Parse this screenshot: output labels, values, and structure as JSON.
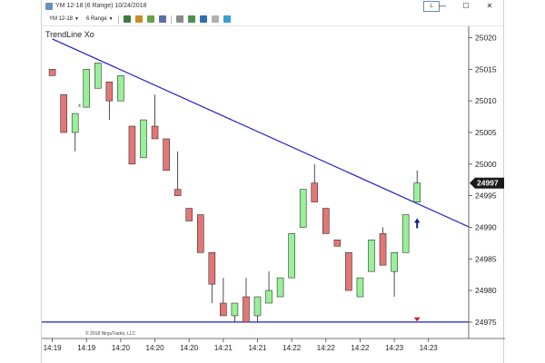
{
  "window": {
    "title": "YM 12-18 (6 Range)  10/24/2018",
    "badge": "L",
    "minimize": "—",
    "maximize": "☐",
    "close": "✕"
  },
  "toolbar": {
    "instrument": "YM 12-18",
    "interval": "6 Range"
  },
  "chart": {
    "title": "TrendLine Xo",
    "side_marker": "x",
    "copyright": "© 2018 NinjaTrader, LLC",
    "price_label": "24997",
    "colors": {
      "up_fill": "#98f098",
      "down_fill": "#e37676",
      "trendline": "#1c1ccd",
      "arrow_up": "#0c1f8a",
      "arrow_down": "#cc2020",
      "price_badge": "#1a1a1a"
    }
  },
  "chart_data": {
    "type": "candlestick",
    "y_ticks": [
      "25020",
      "25015",
      "25010",
      "25005",
      "25000",
      "24995",
      "24990",
      "24985",
      "24980",
      "24975"
    ],
    "x_ticks": [
      "14:19",
      "14:19",
      "14:20",
      "14:20",
      "14:20",
      "14:21",
      "14:21",
      "14:22",
      "14:22",
      "14:22",
      "14:23",
      "14:23"
    ],
    "ylim": [
      24972.4,
      25021.8
    ],
    "candles": [
      {
        "open": 25015,
        "high": 25015,
        "low": 25014,
        "close": 25014
      },
      {
        "open": 25011,
        "high": 25011,
        "low": 25005,
        "close": 25005
      },
      {
        "open": 25005,
        "high": 25008,
        "low": 25002,
        "close": 25008
      },
      {
        "open": 25009,
        "high": 25015,
        "low": 25009,
        "close": 25015
      },
      {
        "open": 25012,
        "high": 25016,
        "low": 25012,
        "close": 25016
      },
      {
        "open": 25013,
        "high": 25013,
        "low": 25007,
        "close": 25010
      },
      {
        "open": 25010,
        "high": 25014,
        "low": 25010,
        "close": 25014
      },
      {
        "open": 25006,
        "high": 25006,
        "low": 25000,
        "close": 25000
      },
      {
        "open": 25001,
        "high": 25007,
        "low": 25001,
        "close": 25007
      },
      {
        "open": 25006,
        "high": 25011,
        "low": 25004,
        "close": 25004
      },
      {
        "open": 25004,
        "high": 25004,
        "low": 24999,
        "close": 24999
      },
      {
        "open": 24996,
        "high": 25002,
        "low": 24995,
        "close": 24995
      },
      {
        "open": 24993,
        "high": 24993,
        "low": 24991,
        "close": 24991
      },
      {
        "open": 24992,
        "high": 24992,
        "low": 24986,
        "close": 24986
      },
      {
        "open": 24986,
        "high": 24986,
        "low": 24978,
        "close": 24981
      },
      {
        "open": 24978,
        "high": 24982,
        "low": 24976,
        "close": 24976
      },
      {
        "open": 24976,
        "high": 24978,
        "low": 24975,
        "close": 24978
      },
      {
        "open": 24979,
        "high": 24982,
        "low": 24975,
        "close": 24975
      },
      {
        "open": 24976,
        "high": 24979,
        "low": 24975,
        "close": 24979
      },
      {
        "open": 24978,
        "high": 24983,
        "low": 24978,
        "close": 24980
      },
      {
        "open": 24979,
        "high": 24982,
        "low": 24979,
        "close": 24982
      },
      {
        "open": 24982,
        "high": 24989,
        "low": 24982,
        "close": 24989
      },
      {
        "open": 24990,
        "high": 24996,
        "low": 24990,
        "close": 24996
      },
      {
        "open": 24997,
        "high": 25000,
        "low": 24994,
        "close": 24994
      },
      {
        "open": 24993,
        "high": 24993,
        "low": 24989,
        "close": 24989
      },
      {
        "open": 24988,
        "high": 24988,
        "low": 24987,
        "close": 24987
      },
      {
        "open": 24986,
        "high": 24986,
        "low": 24980,
        "close": 24980
      },
      {
        "open": 24979,
        "high": 24982,
        "low": 24979,
        "close": 24982
      },
      {
        "open": 24983,
        "high": 24988,
        "low": 24983,
        "close": 24988
      },
      {
        "open": 24989,
        "high": 24990,
        "low": 24984,
        "close": 24984
      },
      {
        "open": 24983,
        "high": 24986,
        "low": 24979,
        "close": 24986
      },
      {
        "open": 24986,
        "high": 24992,
        "low": 24986,
        "close": 24992
      },
      {
        "open": 24994,
        "high": 24999,
        "low": 24994,
        "close": 24997
      }
    ],
    "trendline": {
      "from": {
        "bar": 0,
        "price": 25019.8
      },
      "to": {
        "bar": 36.5,
        "price": 24990.1
      }
    },
    "support_line": {
      "price": 24975
    },
    "markers": [
      {
        "type": "arrow-up",
        "bar": 32,
        "price": 24991
      },
      {
        "type": "triangle-down",
        "bar": 32,
        "price": 24975.3
      }
    ],
    "current_price": 24997
  }
}
